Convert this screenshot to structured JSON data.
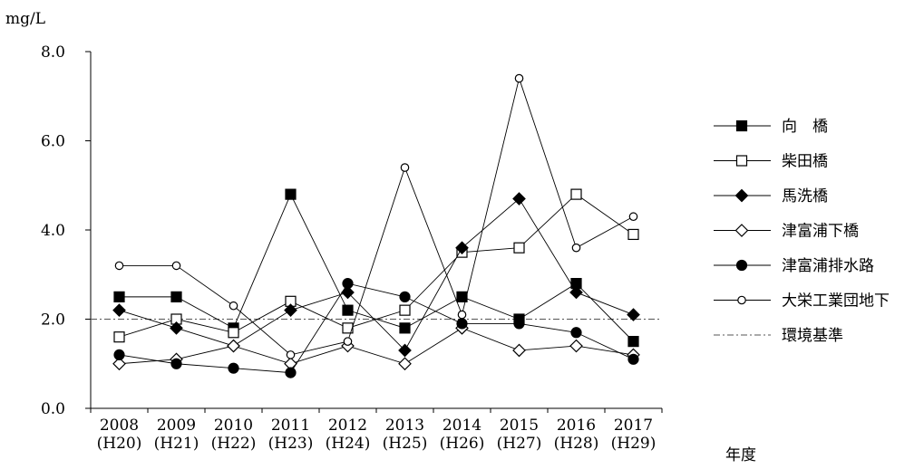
{
  "chart_data": {
    "type": "line",
    "ylabel": "mg/L",
    "xlabel": "年度",
    "ylim": [
      0,
      8
    ],
    "yticks": [
      "0.0",
      "2.0",
      "4.0",
      "6.0",
      "8.0"
    ],
    "x_years": [
      "2008",
      "2009",
      "2010",
      "2011",
      "2012",
      "2013",
      "2014",
      "2015",
      "2016",
      "2017"
    ],
    "x_eras": [
      "(H20)",
      "(H21)",
      "(H22)",
      "(H23)",
      "(H24)",
      "(H25)",
      "(H26)",
      "(H27)",
      "(H28)",
      "(H29)"
    ],
    "grid": false,
    "legend_position": "right",
    "series": [
      {
        "name": "向　橋",
        "marker": "square-filled",
        "values": [
          2.5,
          2.5,
          1.8,
          4.8,
          2.2,
          1.8,
          2.5,
          2.0,
          2.8,
          1.5
        ]
      },
      {
        "name": "柴田橋",
        "marker": "square-open",
        "values": [
          1.6,
          2.0,
          1.7,
          2.4,
          1.8,
          2.2,
          3.5,
          3.6,
          4.8,
          3.9
        ]
      },
      {
        "name": "馬洗橋",
        "marker": "diamond-filled",
        "values": [
          2.2,
          1.8,
          1.4,
          2.2,
          2.6,
          1.3,
          3.6,
          4.7,
          2.6,
          2.1
        ]
      },
      {
        "name": "津富浦下橋",
        "marker": "diamond-open",
        "values": [
          1.0,
          1.1,
          1.4,
          1.0,
          1.4,
          1.0,
          1.8,
          1.3,
          1.4,
          1.2
        ]
      },
      {
        "name": "津富浦排水路",
        "marker": "circle-filled",
        "values": [
          1.2,
          1.0,
          0.9,
          0.8,
          2.8,
          2.5,
          1.9,
          1.9,
          1.7,
          1.1
        ]
      },
      {
        "name": "大栄工業団地下",
        "marker": "circle-open",
        "values": [
          3.2,
          3.2,
          2.3,
          1.2,
          1.5,
          5.4,
          2.1,
          7.4,
          3.6,
          4.3
        ]
      }
    ],
    "reference_line": {
      "name": "環境基準",
      "value": 2.0,
      "style": "dash-dot"
    }
  }
}
